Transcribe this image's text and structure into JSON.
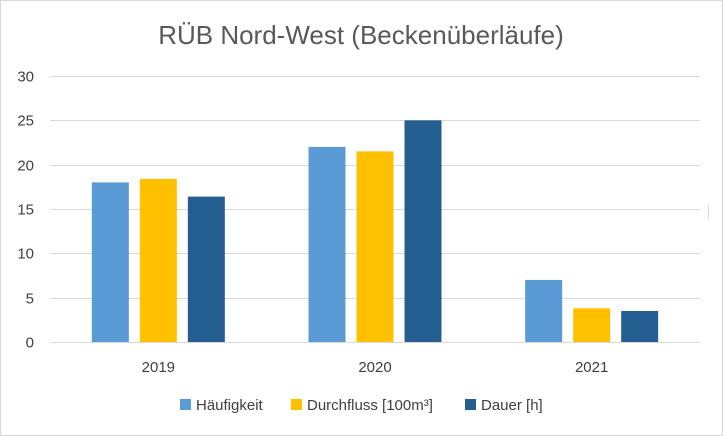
{
  "chart_data": {
    "type": "bar",
    "title": "RÜB Nord-West (Beckenüberläufe)",
    "xlabel": "",
    "ylabel": "",
    "categories": [
      "2019",
      "2020",
      "2021"
    ],
    "ylim": [
      0,
      30
    ],
    "yticks": [
      0,
      5,
      10,
      15,
      20,
      25,
      30
    ],
    "grid": true,
    "legend_position": "bottom",
    "series": [
      {
        "name": "Häufigkeit",
        "color": "#5b9bd5",
        "values": [
          18,
          22,
          7
        ]
      },
      {
        "name": "Durchfluss [100m³]",
        "color": "#ffc000",
        "values": [
          18.4,
          21.5,
          3.8
        ]
      },
      {
        "name": "Dauer [h]",
        "color": "#255e91",
        "values": [
          16.4,
          25,
          3.5
        ]
      }
    ]
  }
}
